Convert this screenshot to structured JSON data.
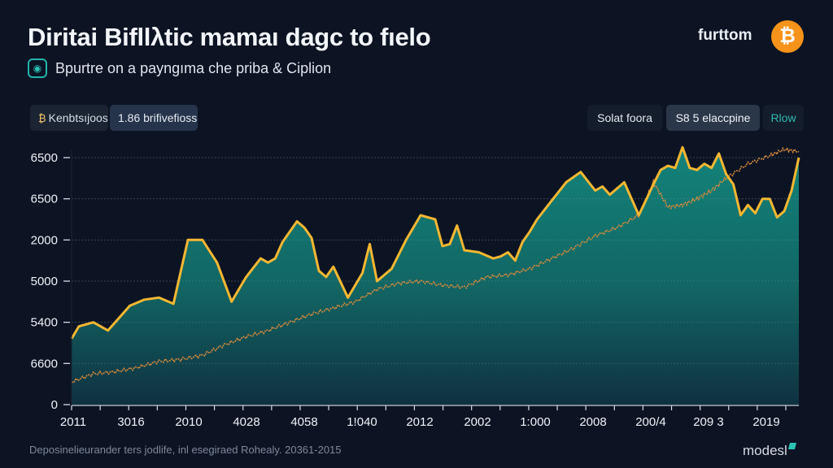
{
  "header": {
    "title": "Diritai Bifllλtic mamaı dagc to fıelo",
    "subtitle": "Bpurtre on a payngıma che priba & Ciplion",
    "subtitle_icon": "globe-icon",
    "brand": "furttom",
    "brand_icon": "bitcoin-icon",
    "brand_icon_glyph": "₿"
  },
  "controls": {
    "left": [
      {
        "label": "Kenbtsıjoos",
        "icon": "coin-icon",
        "icon_glyph": "₿"
      },
      {
        "label": "1.86 brifivefioss"
      }
    ],
    "right": [
      {
        "label": "Solat foora"
      },
      {
        "label": "S8 5 elaccpine"
      },
      {
        "label": "Rlow"
      }
    ]
  },
  "colors": {
    "background": "#0c1424",
    "primary_line": "#f5b731",
    "secondary_line": "#d98a3a",
    "area_top": "#127a72",
    "area_bottom": "#0f3342",
    "accent": "#2fb9ad",
    "bitcoin": "#f7931a"
  },
  "chart_data": {
    "type": "area",
    "title": "Diritai Bifllλtic mamaı dagc to fıelo",
    "xlabel": "",
    "ylabel": "",
    "y_tick_labels": [
      "0",
      "6600",
      "5400",
      "5000",
      "2000",
      "6500",
      "6500"
    ],
    "x_tick_labels": [
      "2011",
      "3016",
      "2010",
      "4028",
      "4058",
      "1!040",
      "2012",
      "2002",
      "1:000",
      "2008",
      "200/4",
      "209 3",
      "2019"
    ],
    "ylim_tick_units": [
      0,
      6
    ],
    "grid": true,
    "legend": "none",
    "x_range": [
      0,
      100
    ],
    "series": [
      {
        "name": "primary",
        "style": "solid-line-with-area",
        "x": [
          0,
          1,
          3,
          5,
          8,
          10,
          12,
          14,
          16,
          18,
          20,
          22,
          24,
          26,
          27,
          28,
          29,
          31,
          32,
          33,
          34,
          35,
          36,
          38,
          40,
          41,
          42,
          44,
          46,
          48,
          50,
          51,
          52,
          53,
          54,
          56,
          58,
          59,
          60,
          61,
          62,
          63,
          64,
          66,
          68,
          70,
          72,
          73,
          74,
          76,
          78,
          80,
          81,
          82,
          83,
          84,
          85,
          86,
          87,
          88,
          89,
          90,
          91,
          92,
          93,
          94,
          95,
          96,
          97,
          98,
          99,
          100
        ],
        "values": [
          1.6,
          1.9,
          2.0,
          1.8,
          2.4,
          2.55,
          2.6,
          2.45,
          4.0,
          4.0,
          3.45,
          2.5,
          3.1,
          3.55,
          3.45,
          3.55,
          3.95,
          4.45,
          4.3,
          4.05,
          3.25,
          3.1,
          3.35,
          2.6,
          3.2,
          3.9,
          3.0,
          3.3,
          4.0,
          4.6,
          4.5,
          3.85,
          3.9,
          4.35,
          3.75,
          3.7,
          3.55,
          3.6,
          3.7,
          3.5,
          3.95,
          4.2,
          4.5,
          4.95,
          5.4,
          5.65,
          5.2,
          5.3,
          5.1,
          5.4,
          4.6,
          5.35,
          5.7,
          5.8,
          5.75,
          6.25,
          5.75,
          5.7,
          5.85,
          5.75,
          6.1,
          5.6,
          5.35,
          4.6,
          4.85,
          4.65,
          5.0,
          5.0,
          4.55,
          4.7,
          5.2,
          6.0
        ]
      },
      {
        "name": "secondary",
        "style": "thin-dotted-line",
        "x": [
          0,
          3,
          6,
          9,
          12,
          15,
          18,
          21,
          24,
          27,
          30,
          33,
          36,
          39,
          42,
          45,
          48,
          51,
          54,
          57,
          60,
          63,
          66,
          69,
          72,
          75,
          78,
          80,
          82,
          84,
          86,
          88,
          90,
          93,
          96,
          98,
          100
        ],
        "values": [
          0.55,
          0.75,
          0.8,
          0.9,
          1.05,
          1.1,
          1.2,
          1.45,
          1.65,
          1.8,
          2.0,
          2.2,
          2.35,
          2.5,
          2.8,
          2.95,
          3.0,
          2.9,
          2.85,
          3.1,
          3.15,
          3.3,
          3.55,
          3.8,
          4.1,
          4.3,
          4.6,
          5.4,
          4.8,
          4.85,
          5.0,
          5.2,
          5.5,
          5.85,
          6.05,
          6.2,
          6.15
        ]
      }
    ]
  },
  "footer": {
    "caption": "Deposinelieurander ters jodlife, inl esegiraed Rohealy. 20361-2015",
    "logo": "modesl"
  }
}
